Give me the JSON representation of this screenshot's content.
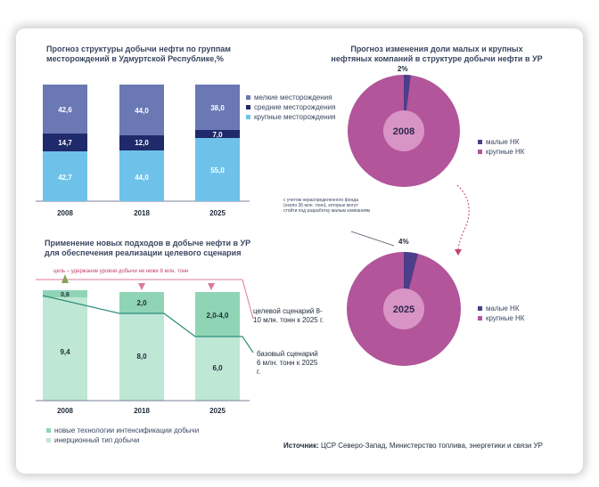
{
  "chart_data": [
    {
      "type": "bar",
      "title": "Прогноз структуры добычи нефти по группам месторождений в Удмуртской Республике,%",
      "categories": [
        "2008",
        "2018",
        "2025"
      ],
      "series": [
        {
          "name": "крупные месторождения",
          "values": [
            "42,7",
            "44,0",
            "55,0"
          ],
          "color": "#6ec2ea"
        },
        {
          "name": "средние месторождения",
          "values": [
            "14,7",
            "12,0",
            "7,0"
          ],
          "color": "#1f2a6b"
        },
        {
          "name": "мелкие месторождения",
          "values": [
            "42,6",
            "44,0",
            "38,0"
          ],
          "color": "#6a78b4"
        }
      ],
      "legend_order": [
        "мелкие месторождения",
        "средние месторождения",
        "крупные месторождения"
      ],
      "legend_position": "right"
    },
    {
      "type": "pie",
      "title": "Прогноз изменения доли малых и крупных нефтяных компаний в структуре добычи нефти в УР",
      "charts": [
        {
          "center_label": "2008",
          "slice_label": "2%",
          "slices": [
            {
              "name": "малые НК",
              "value": 2
            },
            {
              "name": "крупные НК",
              "value": 98
            }
          ]
        },
        {
          "center_label": "2025",
          "slice_label": "4%",
          "slices": [
            {
              "name": "малые НК",
              "value": 4
            },
            {
              "name": "крупные НК",
              "value": 96
            }
          ]
        }
      ],
      "colors": {
        "малые НК": "#4c3e8a",
        "крупные НК": "#b2559a"
      },
      "annotation": "с учетом нераспределенного фонда (около 36 млн. тонн), которые могут стойти под разработку малым компаниям"
    },
    {
      "type": "bar",
      "title": "Применение новых подходов в добыче нефти в УР для обеспечения реализации целевого сценария",
      "categories": [
        "2008",
        "2018",
        "2025"
      ],
      "series": [
        {
          "name": "инерционный тип добычи",
          "values": [
            "9,4",
            "8,0",
            "6,0"
          ],
          "color": "#bfe7d6"
        },
        {
          "name": "новые технологии интенсификации добычи",
          "values": [
            "0,6",
            "2,0",
            "2,0-4,0"
          ],
          "color": "#8fd5b5"
        }
      ],
      "threshold_label": "цель – удержание уровня добычи не ниже 8 млн. тонн",
      "annotations": [
        "целевой сценарий 8-10 млн. тонн к 2025 г.",
        "базовый сценарий 6 млн. тонн к 2025 г."
      ]
    }
  ],
  "source": {
    "label": "Источник:",
    "text": "ЦСР Северо-Запад, Министерство топлива, энергетики и связи УР"
  }
}
